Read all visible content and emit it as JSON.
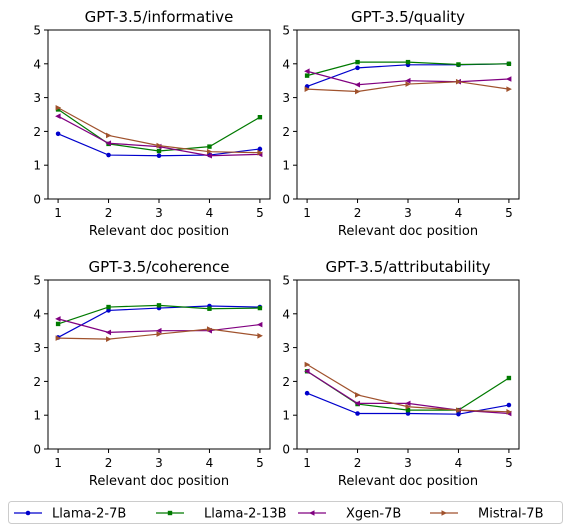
{
  "chart_data": [
    {
      "type": "line",
      "title": "GPT-3.5/informative",
      "xlabel": "Relevant doc position",
      "ylabel": "",
      "x": [
        1,
        2,
        3,
        4,
        5
      ],
      "xticks": [
        "1",
        "2",
        "3",
        "4",
        "5"
      ],
      "yticks": [
        "0",
        "1",
        "2",
        "3",
        "4",
        "5"
      ],
      "ylim": [
        0,
        5
      ],
      "series": [
        {
          "name": "Llama-2-7B",
          "values": [
            1.93,
            1.3,
            1.28,
            1.3,
            1.48
          ]
        },
        {
          "name": "Llama-2-13B",
          "values": [
            2.65,
            1.63,
            1.42,
            1.55,
            2.42
          ]
        },
        {
          "name": "Xgen-7B",
          "values": [
            2.45,
            1.65,
            1.55,
            1.28,
            1.32
          ]
        },
        {
          "name": "Mistral-7B",
          "values": [
            2.7,
            1.88,
            1.58,
            1.4,
            1.37
          ]
        }
      ]
    },
    {
      "type": "line",
      "title": "GPT-3.5/quality",
      "xlabel": "Relevant doc position",
      "ylabel": "",
      "x": [
        1,
        2,
        3,
        4,
        5
      ],
      "xticks": [
        "1",
        "2",
        "3",
        "4",
        "5"
      ],
      "yticks": [
        "0",
        "1",
        "2",
        "3",
        "4",
        "5"
      ],
      "ylim": [
        0,
        5
      ],
      "series": [
        {
          "name": "Llama-2-7B",
          "values": [
            3.33,
            3.88,
            3.97,
            3.97,
            4.0
          ]
        },
        {
          "name": "Llama-2-13B",
          "values": [
            3.65,
            4.05,
            4.05,
            3.98,
            4.0
          ]
        },
        {
          "name": "Xgen-7B",
          "values": [
            3.78,
            3.38,
            3.5,
            3.47,
            3.55
          ]
        },
        {
          "name": "Mistral-7B",
          "values": [
            3.25,
            3.18,
            3.4,
            3.47,
            3.25
          ]
        }
      ]
    },
    {
      "type": "line",
      "title": "GPT-3.5/coherence",
      "xlabel": "Relevant doc position",
      "ylabel": "",
      "x": [
        1,
        2,
        3,
        4,
        5
      ],
      "xticks": [
        "1",
        "2",
        "3",
        "4",
        "5"
      ],
      "yticks": [
        "0",
        "1",
        "2",
        "3",
        "4",
        "5"
      ],
      "ylim": [
        0,
        5
      ],
      "series": [
        {
          "name": "Llama-2-7B",
          "values": [
            3.3,
            4.1,
            4.17,
            4.23,
            4.2
          ]
        },
        {
          "name": "Llama-2-13B",
          "values": [
            3.7,
            4.2,
            4.25,
            4.15,
            4.17
          ]
        },
        {
          "name": "Xgen-7B",
          "values": [
            3.85,
            3.45,
            3.5,
            3.5,
            3.68
          ]
        },
        {
          "name": "Mistral-7B",
          "values": [
            3.28,
            3.25,
            3.4,
            3.55,
            3.35
          ]
        }
      ]
    },
    {
      "type": "line",
      "title": "GPT-3.5/attributability",
      "xlabel": "Relevant doc position",
      "ylabel": "",
      "x": [
        1,
        2,
        3,
        4,
        5
      ],
      "xticks": [
        "1",
        "2",
        "3",
        "4",
        "5"
      ],
      "yticks": [
        "0",
        "1",
        "2",
        "3",
        "4",
        "5"
      ],
      "ylim": [
        0,
        5
      ],
      "series": [
        {
          "name": "Llama-2-7B",
          "values": [
            1.65,
            1.05,
            1.05,
            1.03,
            1.3
          ]
        },
        {
          "name": "Llama-2-13B",
          "values": [
            2.3,
            1.33,
            1.15,
            1.15,
            2.1
          ]
        },
        {
          "name": "Xgen-7B",
          "values": [
            2.3,
            1.35,
            1.35,
            1.15,
            1.05
          ]
        },
        {
          "name": "Mistral-7B",
          "values": [
            2.5,
            1.6,
            1.25,
            1.15,
            1.1
          ]
        }
      ]
    }
  ],
  "legend": {
    "placement": "bottom",
    "items": [
      {
        "name": "Llama-2-7B",
        "color": "#0000cc",
        "marker": "circle"
      },
      {
        "name": "Llama-2-13B",
        "color": "#007a00",
        "marker": "square"
      },
      {
        "name": "Xgen-7B",
        "color": "#800080",
        "marker": "triangle-left"
      },
      {
        "name": "Mistral-7B",
        "color": "#a0522d",
        "marker": "triangle-right"
      }
    ]
  }
}
